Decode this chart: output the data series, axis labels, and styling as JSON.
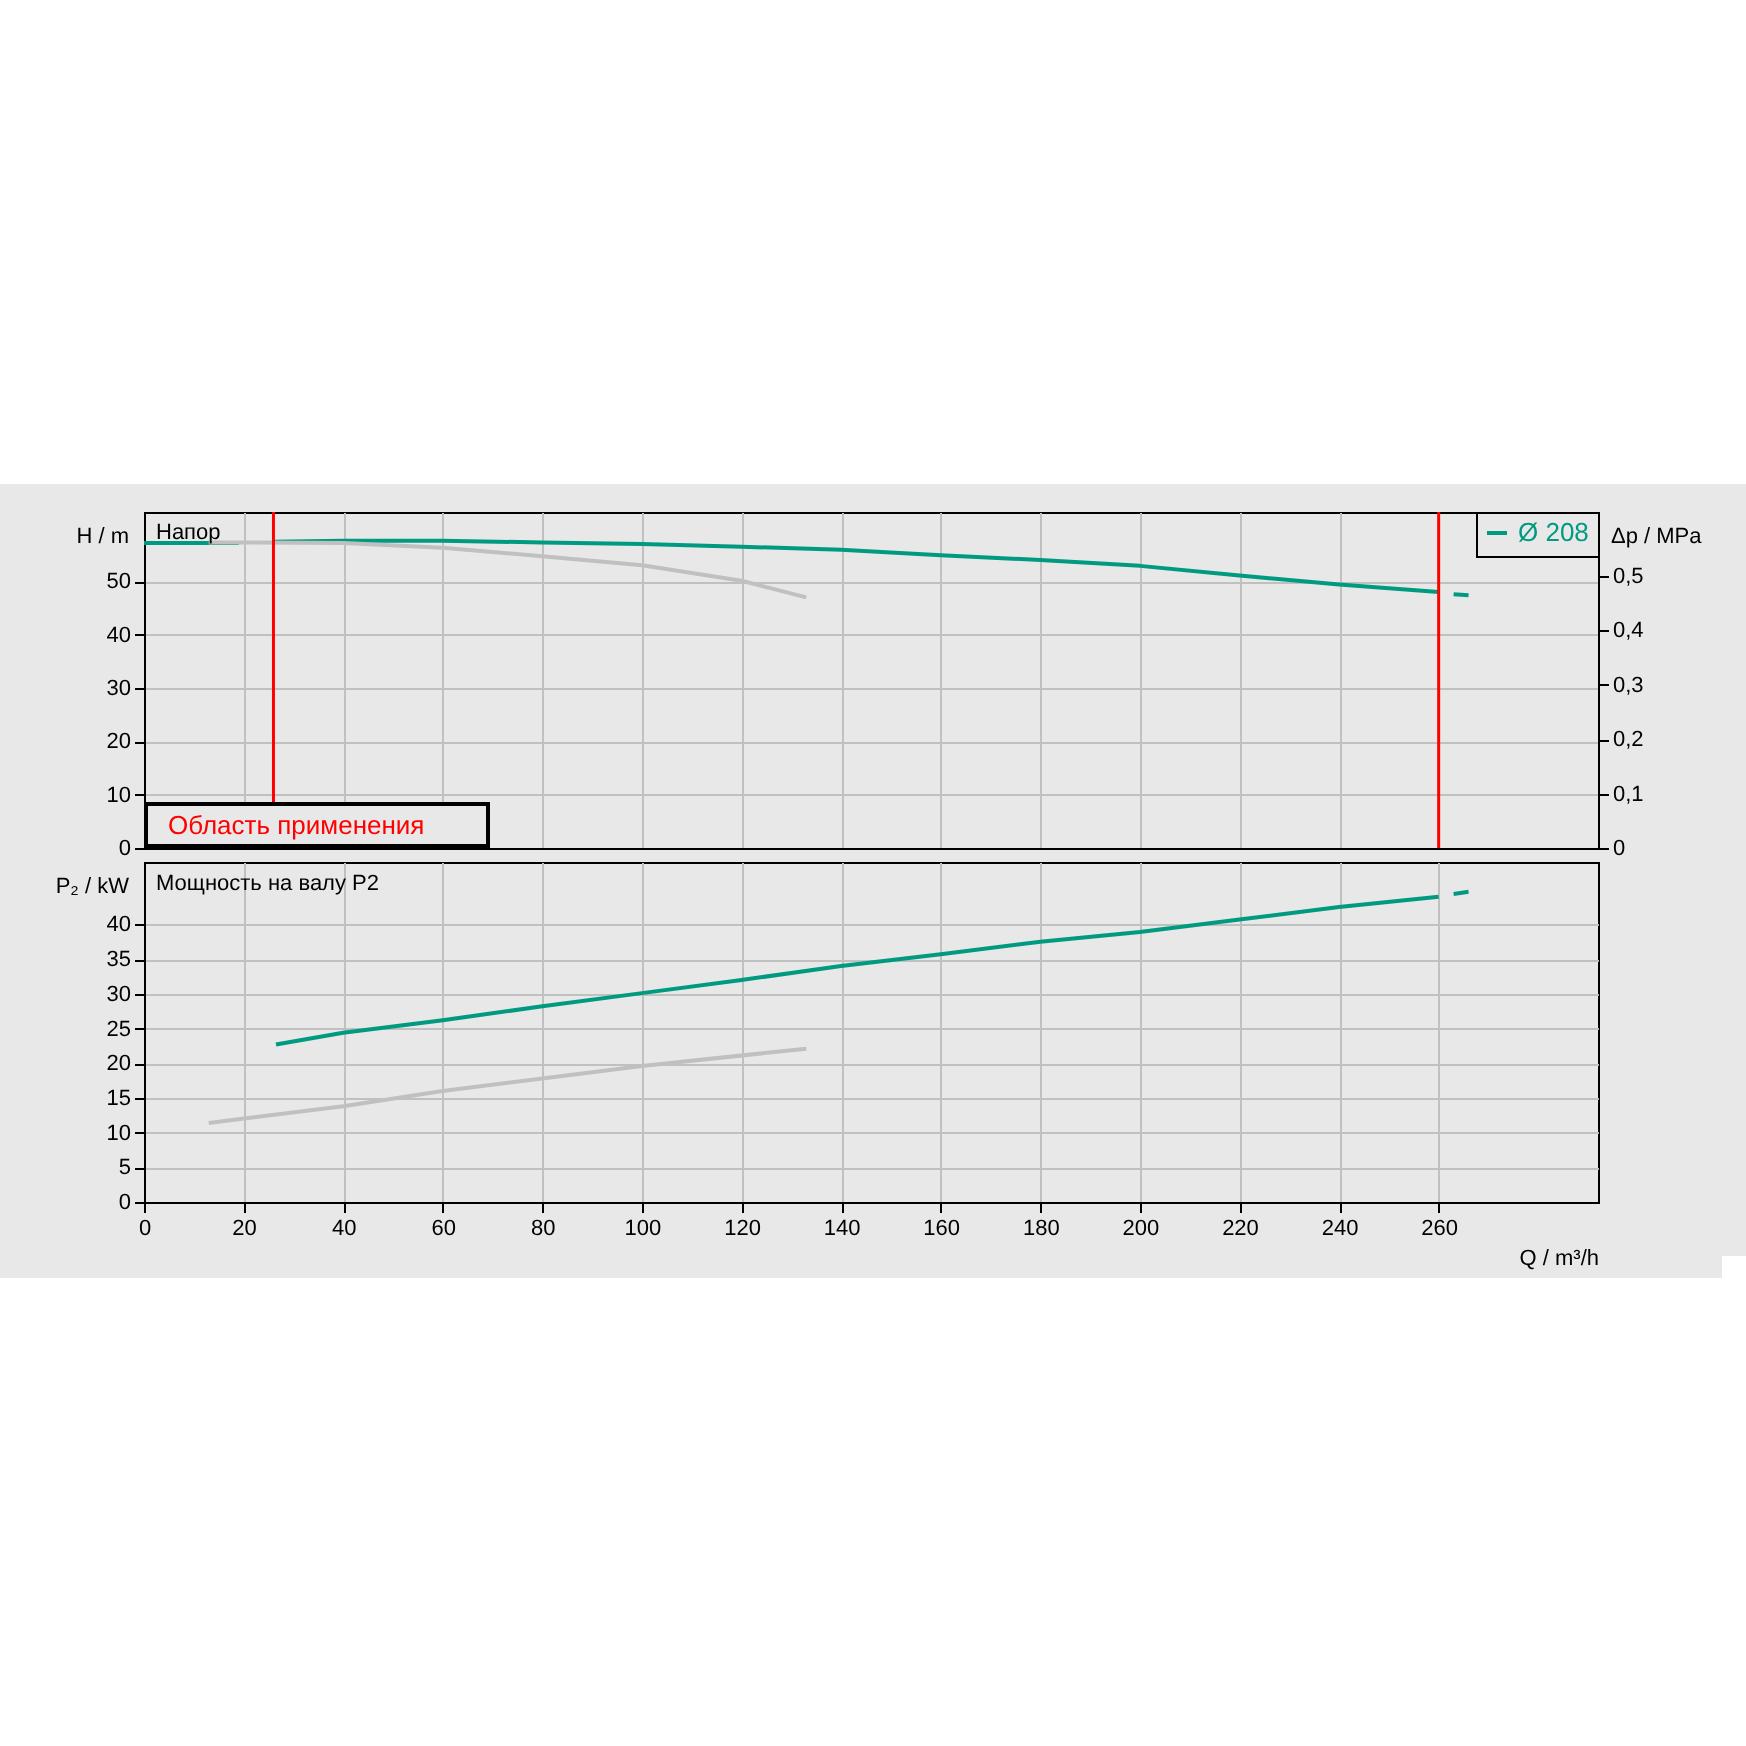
{
  "chart_data": [
    {
      "type": "line",
      "title": "Напор",
      "ylabel": "H / m",
      "y2label": "Δp / MPa",
      "xlim": [
        0,
        292
      ],
      "xticks": [
        0,
        20,
        40,
        60,
        80,
        100,
        120,
        140,
        160,
        180,
        200,
        220,
        240,
        260
      ],
      "ylim": [
        0,
        63
      ],
      "yticks": [
        0,
        10,
        20,
        30,
        40,
        50
      ],
      "y2lim": [
        0,
        0.617
      ],
      "y2ticks": [
        {
          "value": 0,
          "label": "0"
        },
        {
          "value": 0.1,
          "label": "0,1"
        },
        {
          "value": 0.2,
          "label": "0,2"
        },
        {
          "value": 0.3,
          "label": "0,3"
        },
        {
          "value": 0.4,
          "label": "0,4"
        },
        {
          "value": 0.5,
          "label": "0,5"
        }
      ],
      "grid": true,
      "legend": "top right",
      "tick_labels": "y",
      "series": [
        {
          "name": "Ø 208",
          "color": "#009a80",
          "x": [
            0,
            19,
            21,
            26,
            40,
            60,
            80,
            100,
            120,
            140,
            160,
            180,
            200,
            220,
            240,
            260,
            262,
            263,
            266
          ],
          "values": [
            57.2,
            57.2,
            null,
            57.4,
            57.6,
            57.6,
            57.3,
            57.0,
            56.5,
            55.9,
            54.9,
            54.0,
            52.9,
            51.1,
            49.4,
            48.0,
            null,
            47.6,
            47.4
          ]
        },
        {
          "color": "#c0c0c0",
          "x": [
            13,
            40,
            60,
            80,
            100,
            120,
            133
          ],
          "values": [
            57.3,
            57.2,
            56.3,
            54.7,
            53.0,
            50.1,
            47.0
          ]
        }
      ],
      "ref_lines": [
        {
          "axis": "x",
          "value": 26,
          "color": "#ff0000"
        },
        {
          "axis": "x",
          "value": 260,
          "color": "#ff0000"
        }
      ],
      "annotations": [
        "Область применения"
      ]
    },
    {
      "type": "line",
      "title": "Мощность на валу P2",
      "ylabel": "P₂ / kW",
      "xlabel": "Q / m³/h",
      "xlim": [
        0,
        292
      ],
      "xticks": [
        0,
        20,
        40,
        60,
        80,
        100,
        120,
        140,
        160,
        180,
        200,
        220,
        240,
        260
      ],
      "ylim": [
        0,
        49
      ],
      "yticks": [
        0,
        5,
        10,
        15,
        20,
        25,
        30,
        35,
        40
      ],
      "grid": true,
      "series": [
        {
          "color": "#009a80",
          "x": [
            26.5,
            40,
            60,
            80,
            100,
            120,
            140,
            160,
            180,
            200,
            220,
            240,
            260,
            262,
            263,
            266
          ],
          "values": [
            22.7,
            24.4,
            26.2,
            28.2,
            30.1,
            32.0,
            34.0,
            35.7,
            37.5,
            38.9,
            40.7,
            42.5,
            44.0,
            null,
            44.4,
            44.7
          ]
        },
        {
          "color": "#c0c0c0",
          "x": [
            13,
            40,
            60,
            80,
            100,
            133
          ],
          "values": [
            11.4,
            13.8,
            16.0,
            17.8,
            19.6,
            22.1
          ]
        }
      ]
    }
  ]
}
